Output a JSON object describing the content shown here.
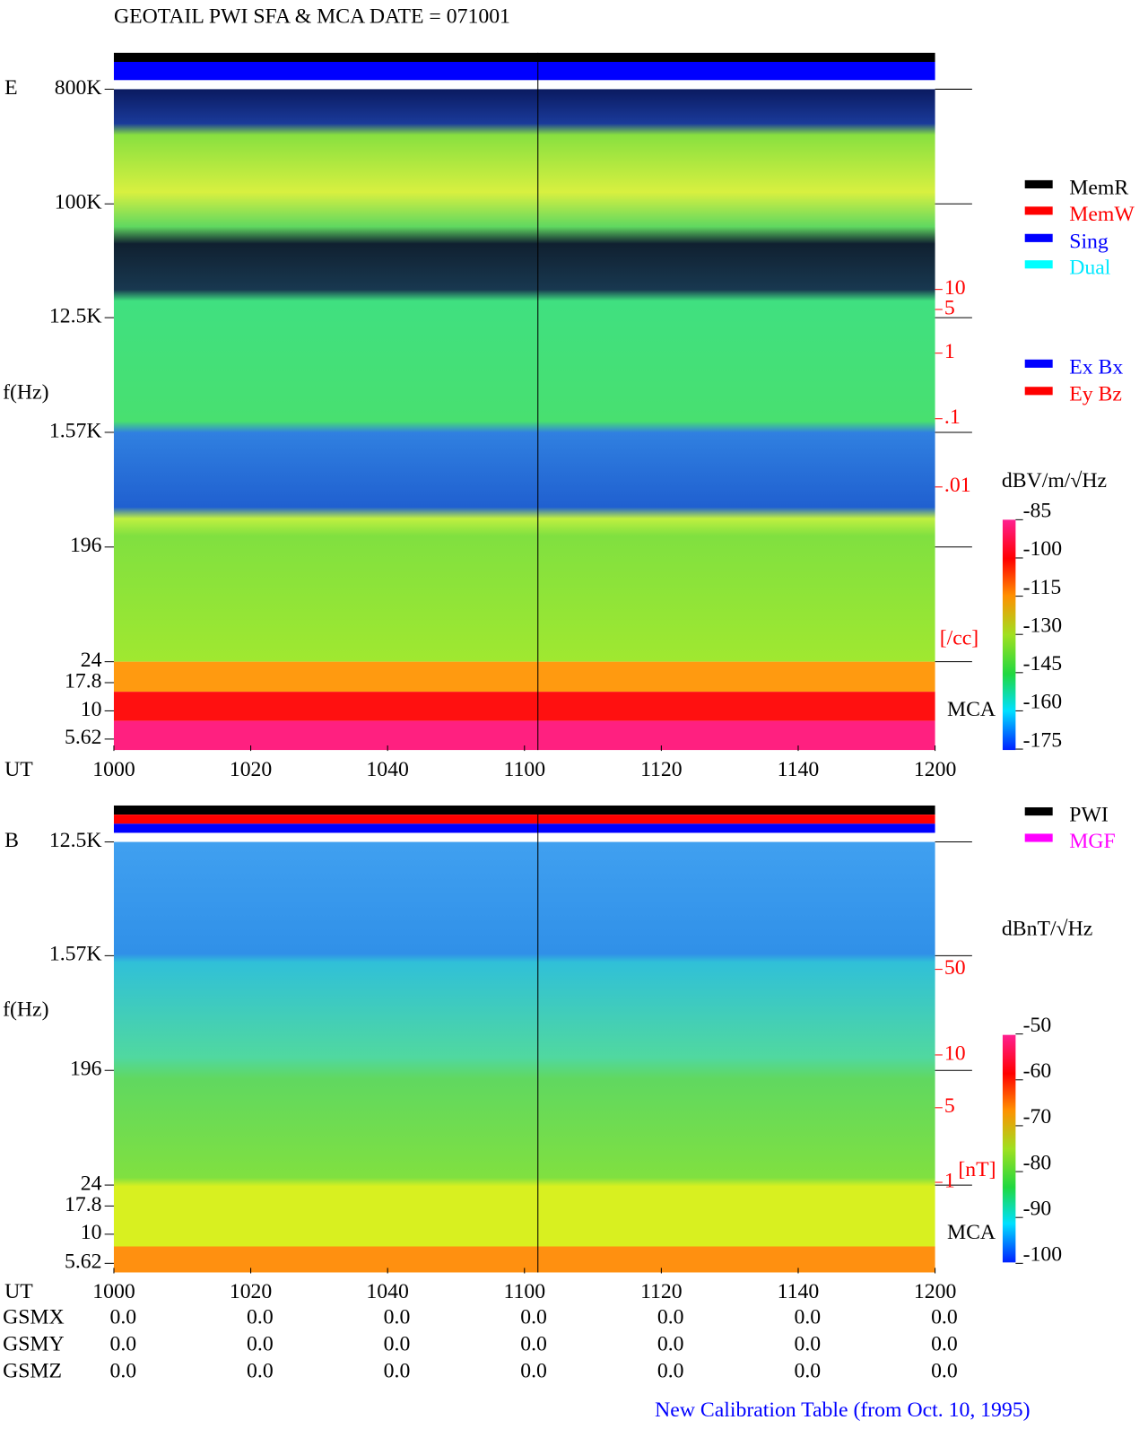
{
  "header": {
    "title": "GEOTAIL  PWI SFA & MCA   DATE = 071001"
  },
  "panels": [
    {
      "label": "E",
      "yaxis_label": "f(Hz)",
      "freq_ticks": [
        "800K",
        "100K",
        "12.5K",
        "1.57K",
        "196",
        "24",
        "17.8",
        "10",
        "5.62"
      ],
      "density_ticks": [
        "10",
        "5",
        "1",
        ".1",
        ".01"
      ],
      "density_unit": "[/cc]",
      "mca_label": "MCA",
      "colorbar_unit": "dBV/m/√Hz",
      "colorbar_ticks": [
        "-85",
        "-100",
        "-115",
        "-130",
        "-145",
        "-160",
        "-175"
      ],
      "time_label": "UT",
      "time_ticks": [
        "1000",
        "1020",
        "1040",
        "1100",
        "1120",
        "1140",
        "1200"
      ],
      "legend": [
        "MemR",
        "MemW",
        "Sing",
        "Dual",
        "Ex Bx",
        "Ey Bz"
      ]
    },
    {
      "label": "B",
      "yaxis_label": "f(Hz)",
      "freq_ticks": [
        "12.5K",
        "1.57K",
        "196",
        "24",
        "17.8",
        "10",
        "5.62"
      ],
      "density_ticks": [
        "50",
        "10",
        "5",
        "1"
      ],
      "density_unit": "[nT]",
      "mca_label": "MCA",
      "colorbar_unit": "dBnT/√Hz",
      "colorbar_ticks": [
        "-50",
        "-60",
        "-70",
        "-80",
        "-90",
        "-100"
      ],
      "time_label": "UT",
      "time_ticks": [
        "1000",
        "1020",
        "1040",
        "1100",
        "1120",
        "1140",
        "1200"
      ],
      "legend": [
        "PWI",
        "MGF"
      ]
    }
  ],
  "orbit": [
    {
      "name": "GSMX",
      "values": [
        "0.0",
        "0.0",
        "0.0",
        "0.0",
        "0.0",
        "0.0",
        "0.0"
      ]
    },
    {
      "name": "GSMY",
      "values": [
        "0.0",
        "0.0",
        "0.0",
        "0.0",
        "0.0",
        "0.0",
        "0.0"
      ]
    },
    {
      "name": "GSMZ",
      "values": [
        "0.0",
        "0.0",
        "0.0",
        "0.0",
        "0.0",
        "0.0",
        "0.0"
      ]
    }
  ],
  "footer": "New Calibration Table (from Oct. 10, 1995)"
}
